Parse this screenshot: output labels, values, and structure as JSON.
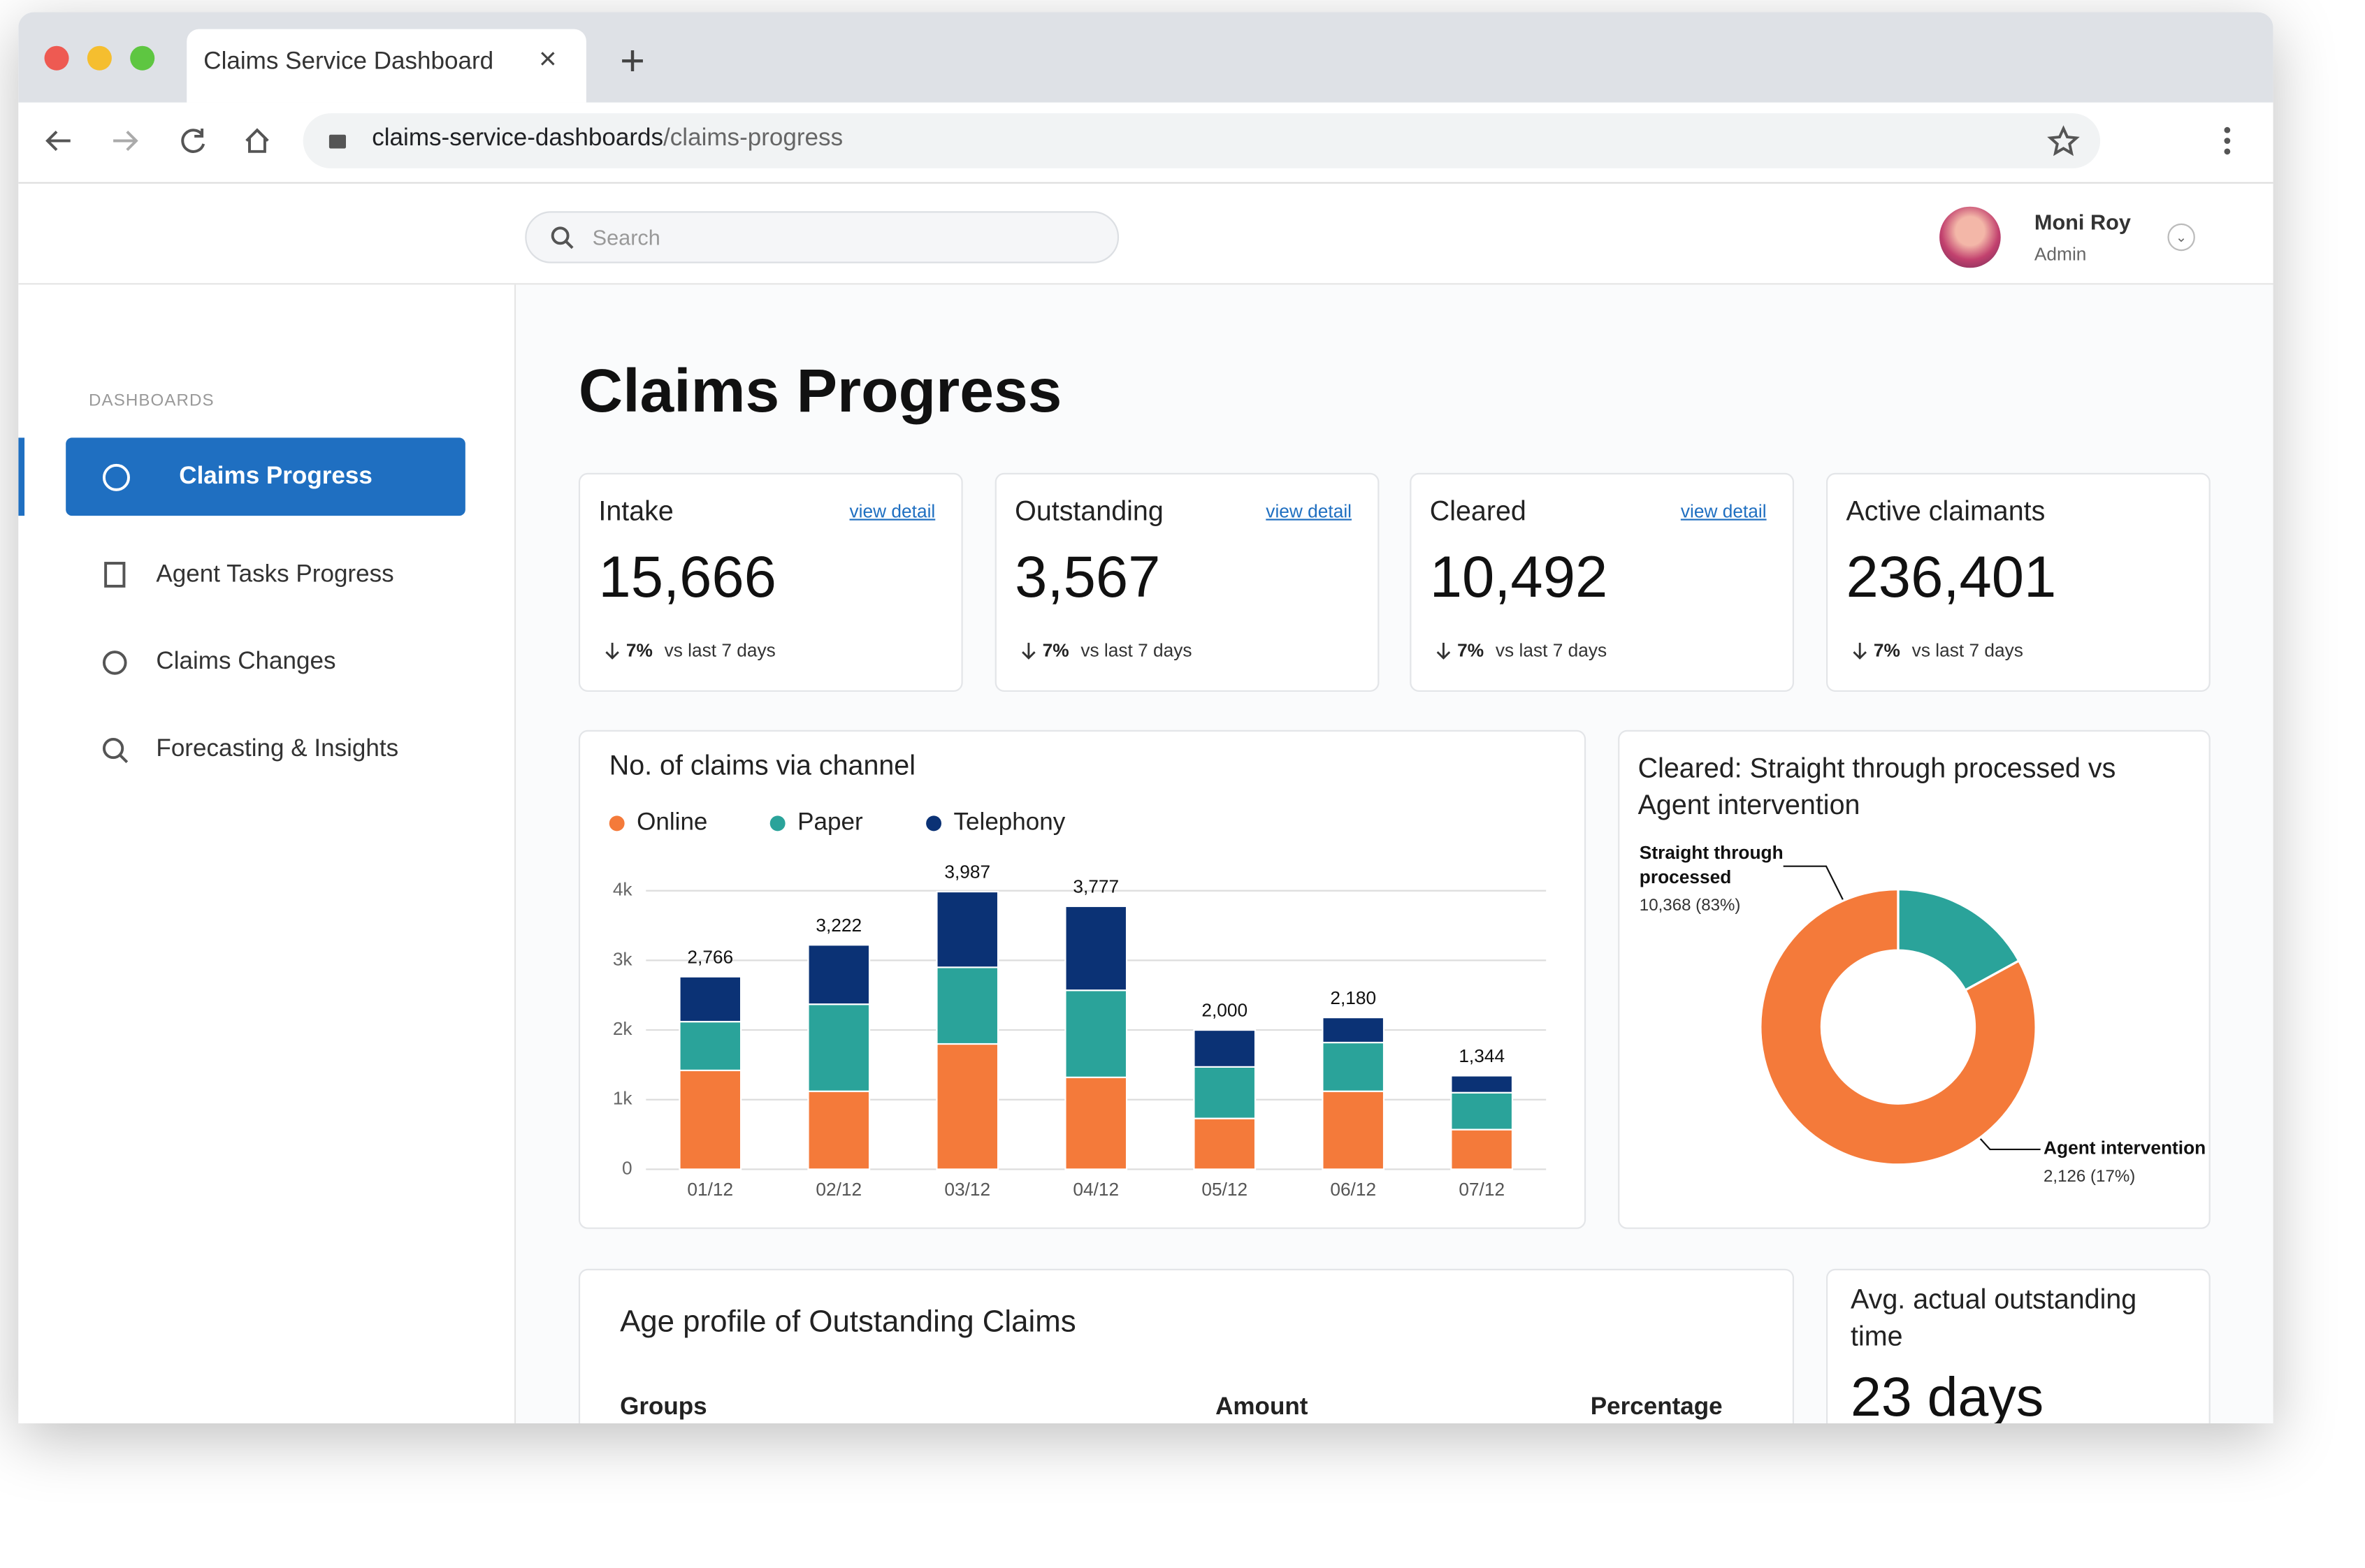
{
  "browser": {
    "tab_title": "Claims Service Dashboard",
    "url_host": "claims-service-dashboards",
    "url_path": "/claims-progress"
  },
  "header": {
    "search_placeholder": "Search",
    "user_name": "Moni Roy",
    "user_role": "Admin"
  },
  "sidebar": {
    "section": "DASHBOARDS",
    "items": [
      "Claims Progress",
      "Agent Tasks Progress",
      "Claims Changes",
      "Forecasting & Insights"
    ]
  },
  "page_title": "Claims Progress",
  "kpis": [
    {
      "label": "Intake",
      "link": "view detail",
      "value": "15,666",
      "change": "7%",
      "period": "vs last 7 days"
    },
    {
      "label": "Outstanding",
      "link": "view detail",
      "value": "3,567",
      "change": "7%",
      "period": "vs last 7 days"
    },
    {
      "label": "Cleared",
      "link": "view detail",
      "value": "10,492",
      "change": "7%",
      "period": "vs last 7 days"
    },
    {
      "label": "Active claimants",
      "value": "236,401",
      "change": "7%",
      "period": "vs last 7 days"
    }
  ],
  "chart_data": [
    {
      "type": "bar",
      "title": "No. of claims via channel",
      "categories": [
        "01/12",
        "02/12",
        "03/12",
        "04/12",
        "05/12",
        "06/12",
        "07/12"
      ],
      "series": [
        {
          "name": "Online",
          "color": "#f47a3a",
          "values": [
            1420,
            1120,
            1800,
            1320,
            730,
            1120,
            570
          ]
        },
        {
          "name": "Paper",
          "color": "#2aa39a",
          "values": [
            700,
            1250,
            1100,
            1250,
            740,
            700,
            530
          ]
        },
        {
          "name": "Telephony",
          "color": "#0b3275",
          "values": [
            646,
            852,
            1087,
            1207,
            530,
            360,
            244
          ]
        }
      ],
      "totals": [
        2766,
        3222,
        3987,
        3777,
        2000,
        2180,
        1344
      ],
      "total_labels": [
        "2,766",
        "3,222",
        "3,987",
        "3,777",
        "2,000",
        "2,180",
        "1,344"
      ],
      "ylim": [
        0,
        4000
      ],
      "yticks": [
        0,
        {
          "value": 1000,
          "label": "1k"
        },
        {
          "value": 2000,
          "label": "2k"
        },
        {
          "value": 3000,
          "label": "3k"
        },
        {
          "value": 4000,
          "label": "4k"
        }
      ],
      "grid": true
    },
    {
      "type": "pie",
      "title": "Cleared: Straight through processed vs Agent intervention",
      "categories": [
        "Agent intervention",
        "Straight through processed"
      ],
      "values": [
        2126,
        10368
      ],
      "value_labels": [
        "2,126 (17%)",
        "10,368 (83%)"
      ],
      "colors": [
        "#2aa39a",
        "#f47a3a"
      ]
    }
  ],
  "age_profile": {
    "title": "Age profile of Outstanding Claims",
    "columns": [
      "Groups",
      "Amount",
      "Percentage"
    ]
  },
  "avg_time": {
    "label": "Avg. actual outstanding time",
    "value": "23 days"
  }
}
